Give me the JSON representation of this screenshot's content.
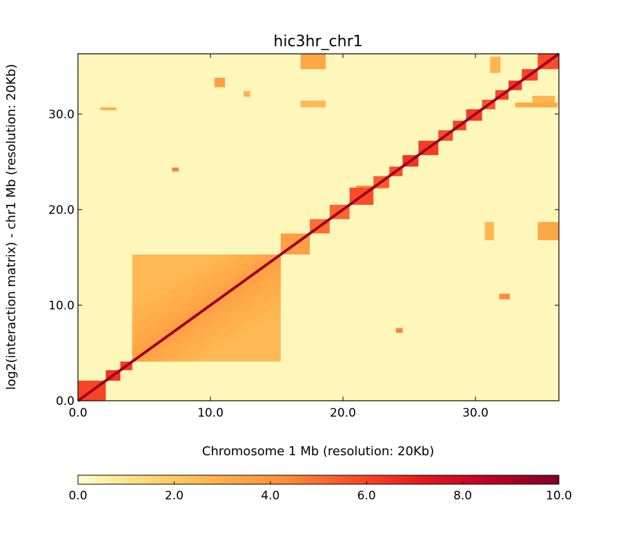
{
  "chart_data": {
    "type": "heatmap",
    "title": "hic3hr_chr1",
    "xlabel": "Chromosome 1 Mb (resolution: 20Kb)",
    "ylabel": "log2(interaction matrix) - chr1 Mb (resolution: 20Kb)",
    "xlim": [
      0,
      36.3
    ],
    "ylim": [
      0,
      36.3
    ],
    "x_ticks": [
      0,
      10,
      20,
      30
    ],
    "y_ticks": [
      0,
      10,
      20,
      30
    ],
    "x_tick_labels": [
      "0.0",
      "10.0",
      "20.0",
      "30.0"
    ],
    "y_tick_labels": [
      "0.0",
      "10.0",
      "20.0",
      "30.0"
    ],
    "colorbar": {
      "range": [
        0,
        10
      ],
      "ticks": [
        0,
        2,
        4,
        6,
        8,
        10
      ],
      "tick_labels": [
        "0.0",
        "2.0",
        "4.0",
        "6.0",
        "8.0",
        "10.0"
      ],
      "colormap": [
        "#ffffcc",
        "#fed976",
        "#feb24c",
        "#fd8d3c",
        "#fc4e2a",
        "#e31a1c",
        "#bd0026",
        "#800026"
      ],
      "placement": "bottom"
    },
    "background_level": 0.3,
    "diagonal_level": 9.2,
    "domains": [
      {
        "start": 0.0,
        "end": 2.1,
        "value": 6.0
      },
      {
        "start": 2.1,
        "end": 3.2,
        "value": 6.5
      },
      {
        "start": 3.2,
        "end": 4.1,
        "value": 6.2
      },
      {
        "start": 4.1,
        "end": 15.3,
        "value": 2.6
      },
      {
        "start": 15.3,
        "end": 17.5,
        "value": 3.6
      },
      {
        "start": 17.5,
        "end": 19.0,
        "value": 5.0
      },
      {
        "start": 19.0,
        "end": 20.5,
        "value": 5.2
      },
      {
        "start": 20.5,
        "end": 22.3,
        "value": 5.8
      },
      {
        "start": 22.3,
        "end": 23.5,
        "value": 5.4
      },
      {
        "start": 23.5,
        "end": 24.5,
        "value": 5.8
      },
      {
        "start": 24.5,
        "end": 25.7,
        "value": 6.4
      },
      {
        "start": 25.7,
        "end": 27.2,
        "value": 6.2
      },
      {
        "start": 27.2,
        "end": 28.3,
        "value": 5.8
      },
      {
        "start": 28.3,
        "end": 29.3,
        "value": 6.0
      },
      {
        "start": 29.3,
        "end": 30.5,
        "value": 6.2
      },
      {
        "start": 30.5,
        "end": 31.5,
        "value": 5.6
      },
      {
        "start": 31.5,
        "end": 32.5,
        "value": 6.0
      },
      {
        "start": 32.5,
        "end": 33.5,
        "value": 6.4
      },
      {
        "start": 33.5,
        "end": 34.7,
        "value": 6.0
      },
      {
        "start": 34.7,
        "end": 36.3,
        "value": 5.8
      }
    ],
    "inner_gradient": {
      "start": 4.1,
      "end": 15.3,
      "value": 3.8
    },
    "off_diagonal_blocks": [
      {
        "x": [
          16.8,
          18.7
        ],
        "y": [
          34.7,
          36.3
        ],
        "value": 3.3
      },
      {
        "x": [
          34.7,
          36.3
        ],
        "y": [
          16.8,
          18.7
        ],
        "value": 3.3
      },
      {
        "x": [
          16.8,
          18.7
        ],
        "y": [
          30.7,
          31.4
        ],
        "value": 2.6
      },
      {
        "x": [
          30.7,
          31.4
        ],
        "y": [
          16.8,
          18.7
        ],
        "value": 2.6
      },
      {
        "x": [
          10.3,
          11.1
        ],
        "y": [
          32.8,
          33.8
        ],
        "value": 3.6
      },
      {
        "x": [
          31.8,
          32.6
        ],
        "y": [
          10.6,
          11.2
        ],
        "value": 4.2
      },
      {
        "x": [
          7.1,
          7.6
        ],
        "y": [
          24.0,
          24.4
        ],
        "value": 4.6
      },
      {
        "x": [
          24.0,
          24.5
        ],
        "y": [
          7.1,
          7.6
        ],
        "value": 4.6
      },
      {
        "x": [
          31.1,
          31.9
        ],
        "y": [
          34.3,
          36.0
        ],
        "value": 2.7
      },
      {
        "x": [
          34.3,
          36.0
        ],
        "y": [
          31.1,
          31.9
        ],
        "value": 2.7
      },
      {
        "x": [
          1.7,
          2.9
        ],
        "y": [
          30.4,
          30.7
        ],
        "value": 3.0
      },
      {
        "x": [
          33.0,
          36.2
        ],
        "y": [
          30.7,
          31.2
        ],
        "value": 3.2
      },
      {
        "x": [
          21.0,
          23.4
        ],
        "y": [
          22.2,
          22.5
        ],
        "value": 4.4
      },
      {
        "x": [
          12.5,
          13.0
        ],
        "y": [
          31.8,
          32.4
        ],
        "value": 2.8
      }
    ]
  }
}
